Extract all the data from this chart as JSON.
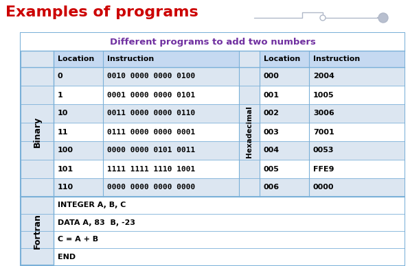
{
  "title": "Examples of programs",
  "subtitle": "Different programs to add two numbers",
  "title_color": "#cc0000",
  "subtitle_color": "#7030a0",
  "table_bg": "#dce6f1",
  "header_bg": "#c5d9f1",
  "row_colors": [
    "#dce6f1",
    "#ffffff"
  ],
  "fortran_row_colors": [
    "#dce6f1",
    "#ffffff"
  ],
  "border_color": "#7ab0d8",
  "binary_rows": [
    [
      "0",
      "0010 0000 0000 0100"
    ],
    [
      "1",
      "0001 0000 0000 0101"
    ],
    [
      "10",
      "0011 0000 0000 0110"
    ],
    [
      "11",
      "0111 0000 0000 0001"
    ],
    [
      "100",
      "0000 0000 0101 0011"
    ],
    [
      "101",
      "1111 1111 1110 1001"
    ],
    [
      "110",
      "0000 0000 0000 0000"
    ]
  ],
  "hex_rows": [
    [
      "000",
      "2004"
    ],
    [
      "001",
      "1005"
    ],
    [
      "002",
      "3006"
    ],
    [
      "003",
      "7001"
    ],
    [
      "004",
      "0053"
    ],
    [
      "005",
      "FFE9"
    ],
    [
      "006",
      "0000"
    ]
  ],
  "fortran_rows": [
    "INTEGER A, B, C",
    "DATA A, 83  B, -23",
    "C = A + B",
    "END"
  ],
  "fig_width": 5.97,
  "fig_height": 3.88,
  "dpi": 100
}
